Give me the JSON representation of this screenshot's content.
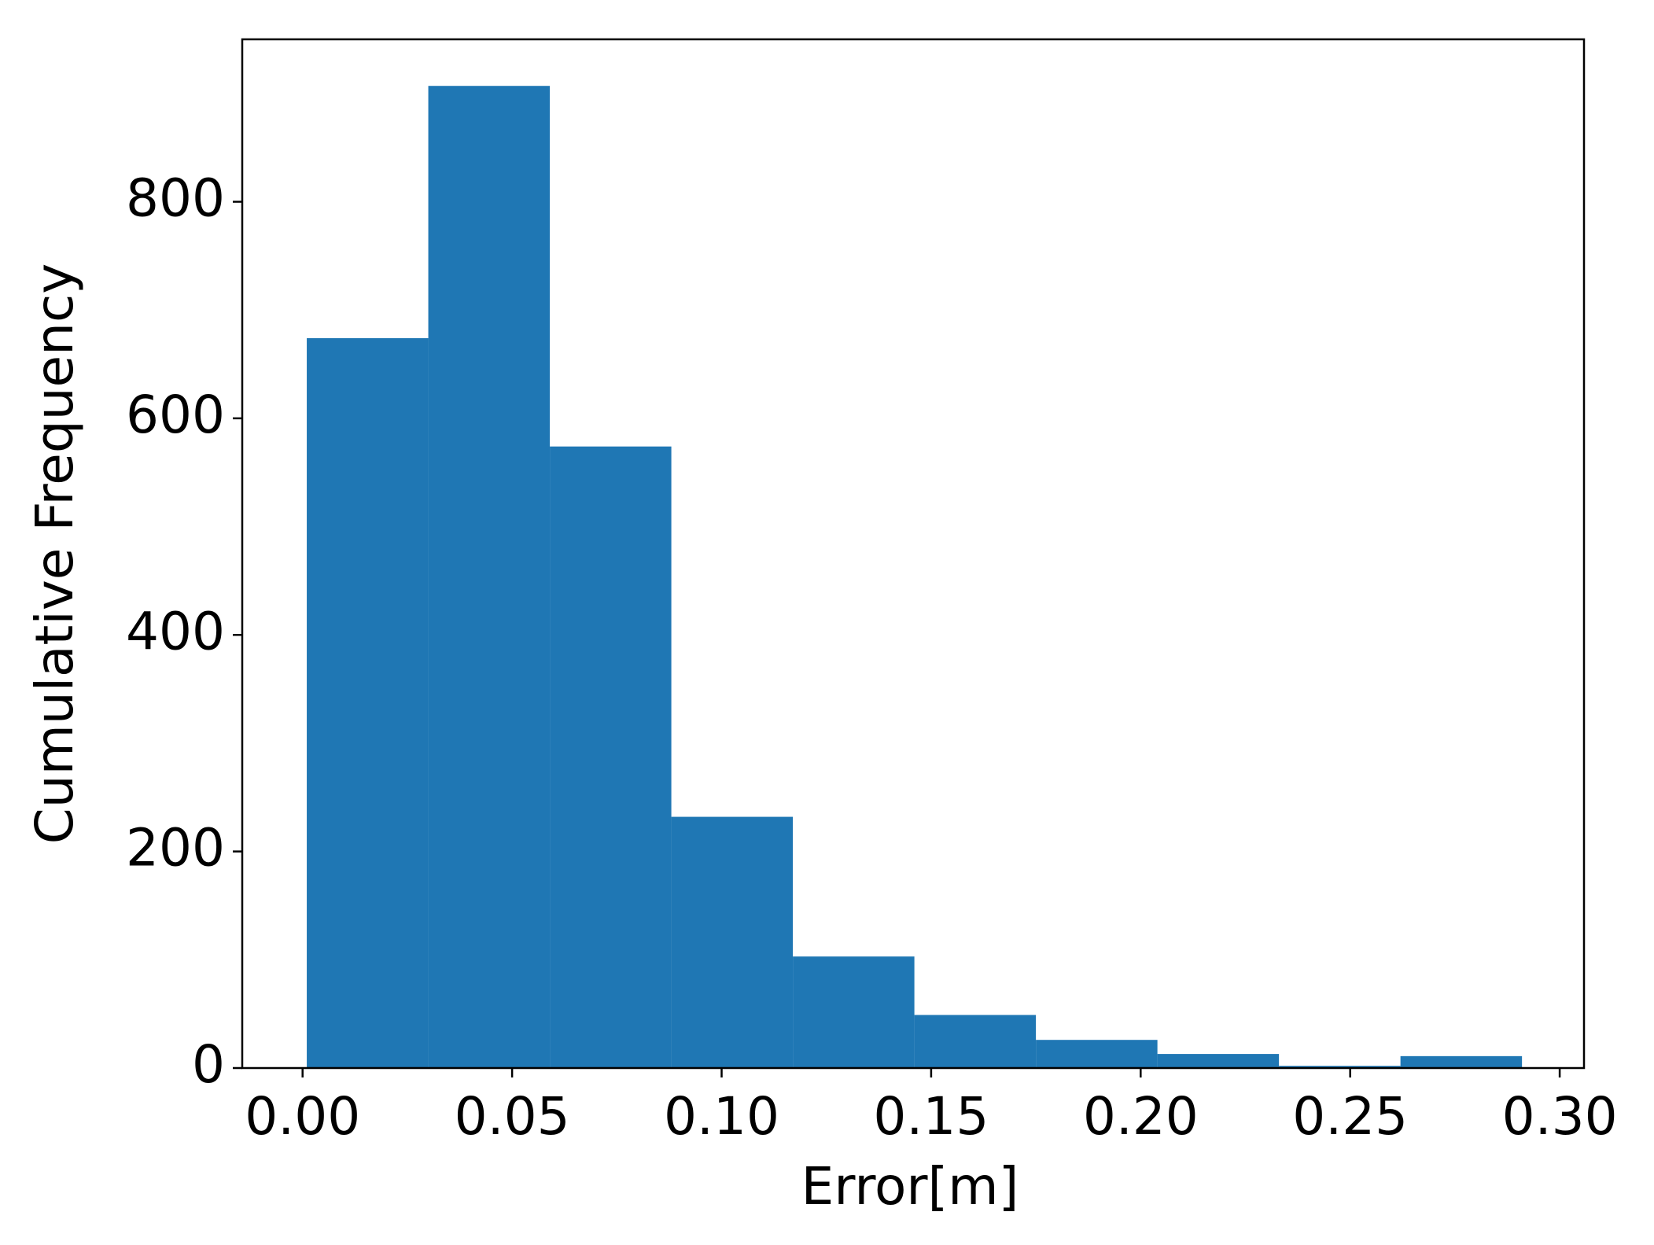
{
  "chart_data": {
    "type": "histogram",
    "xlabel": "Error[m]",
    "ylabel": "Cumulative Frequency",
    "bins": [
      0.001,
      0.03,
      0.059,
      0.088,
      0.117,
      0.146,
      0.175,
      0.204,
      0.233,
      0.262,
      0.291
    ],
    "values": [
      674,
      907,
      574,
      232,
      103,
      49,
      26,
      13,
      2,
      11
    ],
    "color": "#1f77b4",
    "xlim": [
      -0.0144,
      0.3058
    ],
    "ylim": [
      0,
      950
    ],
    "xticks": [
      {
        "value": 0,
        "label": "0.00"
      },
      {
        "value": 0.05,
        "label": "0.05"
      },
      {
        "value": 0.1,
        "label": "0.10"
      },
      {
        "value": 0.15,
        "label": "0.15"
      },
      {
        "value": 0.2,
        "label": "0.20"
      },
      {
        "value": 0.25,
        "label": "0.25"
      },
      {
        "value": 0.3,
        "label": "0.30"
      }
    ],
    "yticks": [
      0,
      200,
      400,
      600,
      800
    ],
    "grid": false
  }
}
